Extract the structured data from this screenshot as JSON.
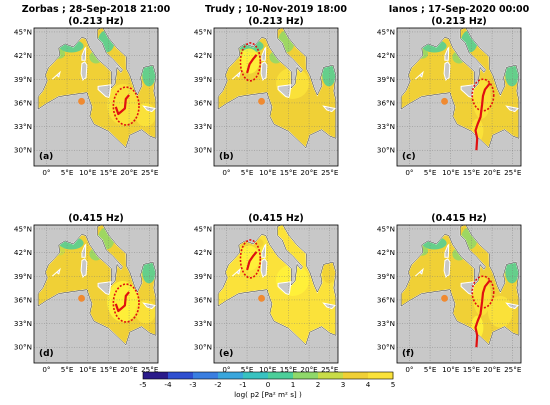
{
  "map_axes": {
    "lon_ticks": [
      "0°",
      "5°E",
      "10°E",
      "15°E",
      "20°E",
      "25°E"
    ],
    "lat_ticks": [
      "45°N",
      "42°N",
      "39°N",
      "36°N",
      "33°N",
      "30°N"
    ]
  },
  "panels": [
    {
      "title": "Zorbas ; 28-Sep-2018 21:00",
      "subtitle": "(0.213 Hz)",
      "label": "(a)",
      "base_level": 2.9,
      "track": "zorbas"
    },
    {
      "title": "Trudy ; 10-Nov-2019 18:00",
      "subtitle": "(0.213 Hz)",
      "label": "(b)",
      "base_level": 3.3,
      "track": "trudy"
    },
    {
      "title": "Ianos ; 17-Sep-2020 00:00",
      "subtitle": "(0.213 Hz)",
      "label": "(c)",
      "base_level": 2.7,
      "track": "ianos"
    },
    {
      "title": "",
      "subtitle": "(0.415 Hz)",
      "label": "(d)",
      "base_level": 3.3,
      "track": "zorbas"
    },
    {
      "title": "",
      "subtitle": "(0.415 Hz)",
      "label": "(e)",
      "base_level": 4.3,
      "track": "trudy"
    },
    {
      "title": "",
      "subtitle": "(0.415 Hz)",
      "label": "(f)",
      "base_level": 3.1,
      "track": "ianos"
    }
  ],
  "colorbar": {
    "label": "log( p2 [Pa² m² s] )",
    "ticks": [
      "-5",
      "-4",
      "-3",
      "-2",
      "-1",
      "0",
      "1",
      "2",
      "3",
      "4",
      "5"
    ],
    "colors": [
      "#2a1a8a",
      "#2f4fd0",
      "#3a7ee0",
      "#3aa6dc",
      "#38c2c0",
      "#4ccf9a",
      "#8fd86a",
      "#c8dc48",
      "#f0d036",
      "#fbe23a",
      "#fff23a"
    ]
  },
  "colors": {
    "land": "#c8c8c8",
    "track": "#e01010",
    "circle": "#e01010",
    "station": "#f08a30"
  }
}
